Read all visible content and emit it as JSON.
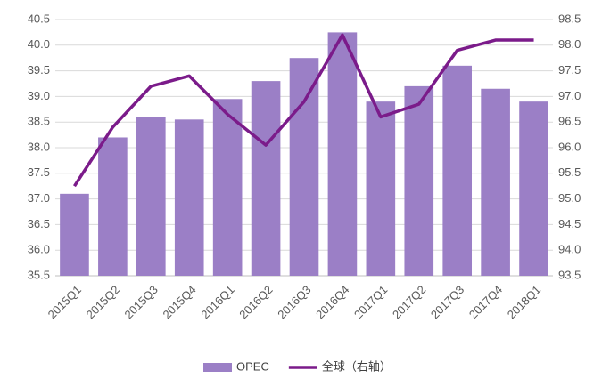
{
  "chart_data": {
    "type": "bar_line",
    "categories": [
      "2015Q1",
      "2015Q2",
      "2015Q3",
      "2015Q4",
      "2016Q1",
      "2016Q2",
      "2016Q3",
      "2016Q4",
      "2017Q1",
      "2017Q2",
      "2017Q3",
      "2017Q4",
      "2018Q1"
    ],
    "series": [
      {
        "name": "OPEC",
        "type": "bar",
        "color": "#9b7fc6",
        "values": [
          37.1,
          38.2,
          38.6,
          38.55,
          38.95,
          39.3,
          39.75,
          40.25,
          38.9,
          39.2,
          39.6,
          39.15,
          38.9
        ]
      },
      {
        "name": "全球（右轴）",
        "type": "line",
        "axis": "y2",
        "color": "#7b1b8a",
        "values": [
          95.25,
          96.4,
          97.2,
          97.4,
          96.65,
          96.05,
          96.9,
          98.2,
          96.6,
          96.85,
          97.9,
          98.1,
          98.1
        ]
      }
    ],
    "ylim": [
      35.5,
      40.5
    ],
    "yticks": [
      35.5,
      {
        "value": 36,
        "label": "36.0"
      },
      36.5,
      {
        "value": 37,
        "label": "37.0"
      },
      37.5,
      {
        "value": 38,
        "label": "38.0"
      },
      38.5,
      {
        "value": 39,
        "label": "39.0"
      },
      39.5,
      {
        "value": 40,
        "label": "40.0"
      },
      40.5
    ],
    "y2lim": [
      93.5,
      98.5
    ],
    "y2ticks": [
      93.5,
      {
        "value": 94,
        "label": "94.0"
      },
      94.5,
      {
        "value": 95,
        "label": "95.0"
      },
      95.5,
      {
        "value": 96,
        "label": "96.0"
      },
      96.5,
      {
        "value": 97,
        "label": "97.0"
      },
      97.5,
      {
        "value": 98,
        "label": "98.0"
      },
      98.5
    ],
    "grid": true,
    "legend": "bottom"
  }
}
